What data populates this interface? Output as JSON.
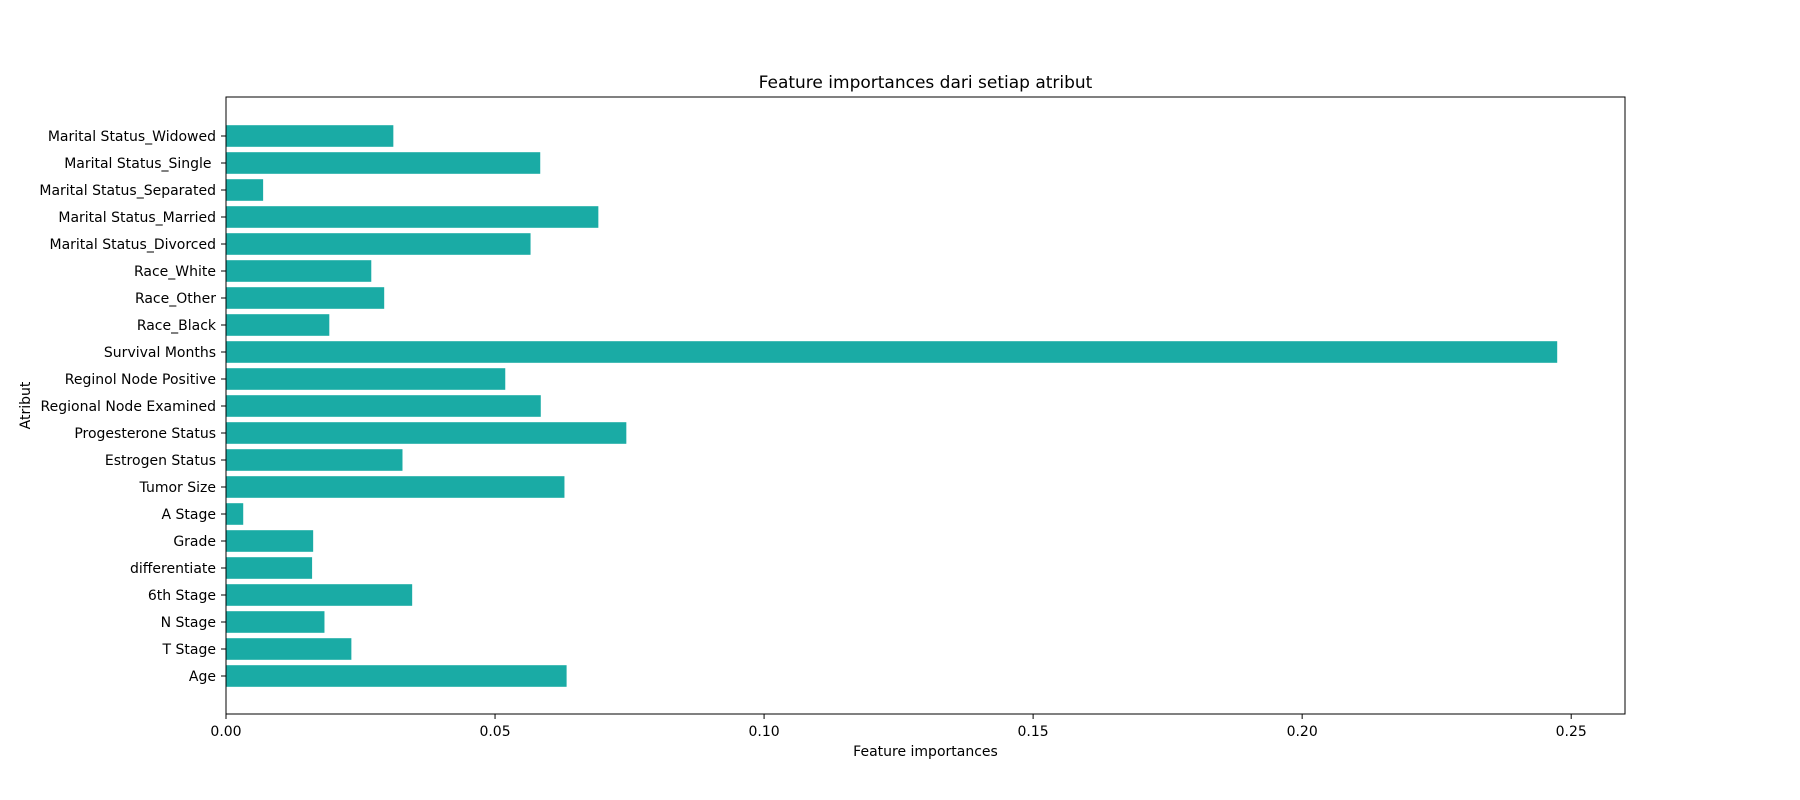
{
  "chart_data": {
    "type": "bar",
    "orientation": "horizontal",
    "title": "Feature importances dari setiap atribut",
    "xlabel": "Feature importances",
    "ylabel": "Atribut",
    "xlim": [
      0.0,
      0.26
    ],
    "xticks": [
      "0.00",
      "0.05",
      "0.10",
      "0.15",
      "0.20",
      "0.25"
    ],
    "grid": false,
    "bar_color": "#1aaba5",
    "categories": [
      "Age",
      "T Stage",
      "N Stage",
      "6th Stage",
      "differentiate",
      "Grade",
      "A Stage",
      "Tumor Size",
      "Estrogen Status",
      "Progesterone Status",
      "Regional Node Examined",
      "Reginol Node Positive",
      "Survival Months",
      "Race_Black",
      "Race_Other",
      "Race_White",
      "Marital Status_Divorced",
      "Marital Status_Married",
      "Marital Status_Separated",
      "Marital Status_Single ",
      "Marital Status_Widowed"
    ],
    "values": [
      0.0633,
      0.0233,
      0.0183,
      0.0346,
      0.016,
      0.0162,
      0.0032,
      0.0629,
      0.0328,
      0.0744,
      0.0585,
      0.0519,
      0.2474,
      0.0192,
      0.0294,
      0.027,
      0.0566,
      0.0692,
      0.0069,
      0.0584,
      0.0311
    ]
  }
}
